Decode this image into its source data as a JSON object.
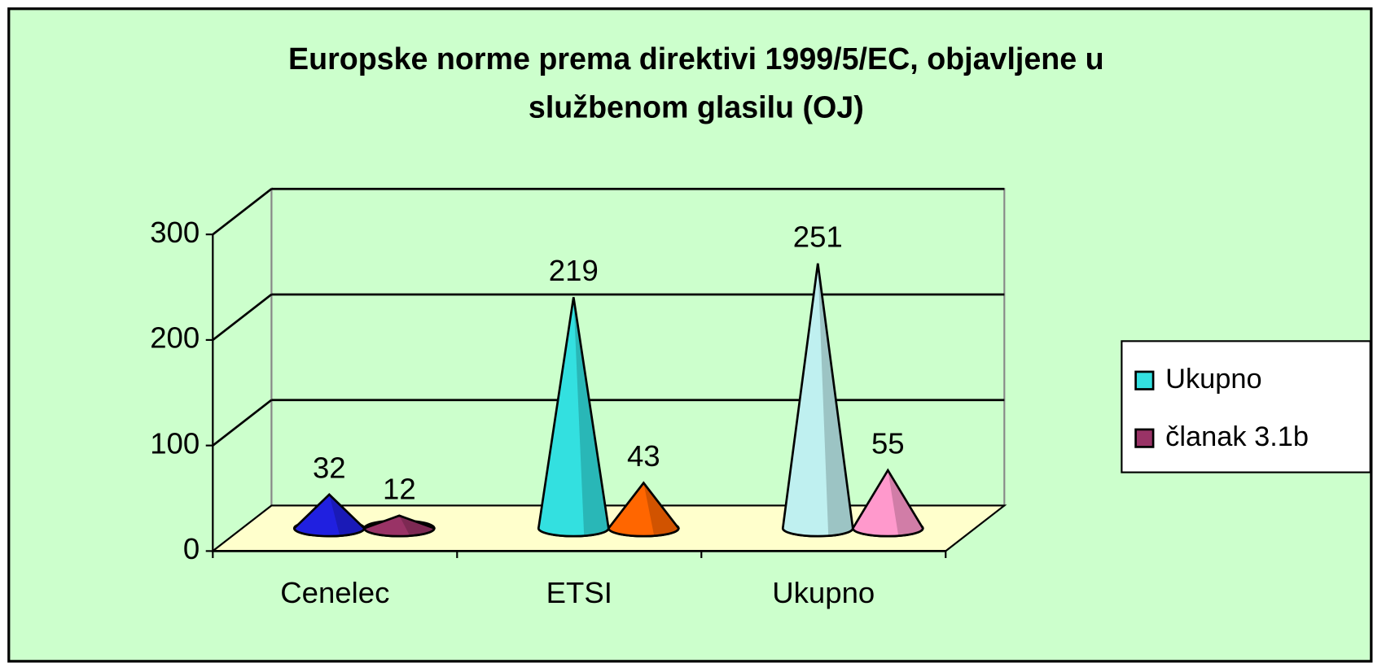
{
  "chart_data": {
    "type": "cone3d",
    "title": "Europske norme prema direktivi 1999/5/EC, objavljene u službenom glasilu (OJ)",
    "categories": [
      "Cenelec",
      "ETSI",
      "Ukupno"
    ],
    "series": [
      {
        "name": "Ukupno",
        "color": "#33e0e0",
        "point_colors": [
          "#2020e0",
          "#33e0e0",
          "#bff0f0"
        ],
        "values": [
          32,
          219,
          251
        ]
      },
      {
        "name": "članak 3.1b",
        "color": "#993366",
        "point_colors": [
          "#993366",
          "#ff6600",
          "#ff99cc"
        ],
        "values": [
          12,
          43,
          55
        ]
      }
    ],
    "ylim": [
      0,
      300
    ],
    "yticks": [
      0,
      100,
      200,
      300
    ],
    "grid": true,
    "legend": "right"
  }
}
